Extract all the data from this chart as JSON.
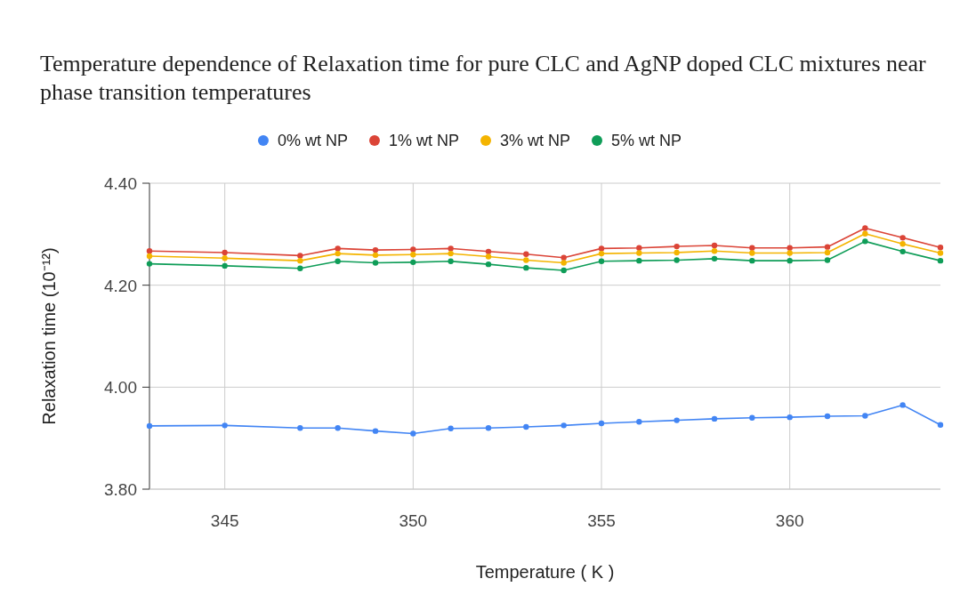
{
  "chart_data": {
    "type": "line",
    "title": "Temperature dependence of Relaxation time for pure CLC and AgNP doped CLC mixtures near phase transition temperatures",
    "xlabel": "Temperature ( K )",
    "ylabel": "Relaxation time (10⁻¹²)",
    "x": [
      343,
      345,
      347,
      348,
      349,
      350,
      351,
      352,
      353,
      354,
      355,
      356,
      357,
      358,
      359,
      360,
      361,
      362,
      363,
      364
    ],
    "series": [
      {
        "name": "0% wt NP",
        "color": "#4285f4",
        "values": [
          3.924,
          3.925,
          3.92,
          3.92,
          3.914,
          3.909,
          3.919,
          3.92,
          3.922,
          3.925,
          3.929,
          3.932,
          3.935,
          3.938,
          3.94,
          3.941,
          3.943,
          3.944,
          3.965,
          3.926
        ]
      },
      {
        "name": "1% wt NP",
        "color": "#db4437",
        "values": [
          4.267,
          4.264,
          4.258,
          4.272,
          4.269,
          4.27,
          4.272,
          4.266,
          4.261,
          4.254,
          4.272,
          4.273,
          4.276,
          4.278,
          4.273,
          4.273,
          4.275,
          4.312,
          4.293,
          4.274
        ]
      },
      {
        "name": "3% wt NP",
        "color": "#f4b400",
        "values": [
          4.257,
          4.253,
          4.248,
          4.262,
          4.259,
          4.26,
          4.262,
          4.256,
          4.249,
          4.244,
          4.262,
          4.263,
          4.264,
          4.267,
          4.263,
          4.263,
          4.264,
          4.301,
          4.281,
          4.263
        ]
      },
      {
        "name": "5% wt NP",
        "color": "#0f9d58",
        "values": [
          4.242,
          4.238,
          4.233,
          4.247,
          4.244,
          4.245,
          4.247,
          4.241,
          4.234,
          4.229,
          4.247,
          4.248,
          4.249,
          4.252,
          4.248,
          4.248,
          4.249,
          4.286,
          4.266,
          4.248
        ]
      }
    ],
    "xlim": [
      343,
      364
    ],
    "xticks": [
      345,
      350,
      355,
      360
    ],
    "ylim": [
      3.8,
      4.4
    ],
    "yticks": [
      {
        "value": 3.8,
        "label": "3.80"
      },
      {
        "value": 4.0,
        "label": "4.00"
      },
      {
        "value": 4.2,
        "label": "4.20"
      },
      {
        "value": 4.4,
        "label": "4.40"
      }
    ],
    "grid": true,
    "legend": "top",
    "marker": "circle",
    "line_style": "solid"
  }
}
